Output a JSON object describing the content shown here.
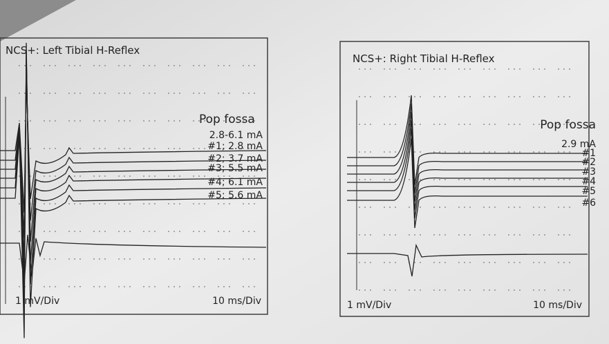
{
  "panels": [
    {
      "title": "NCS+: Left Tibial H-Reflex",
      "site": "Pop fossa",
      "intensity": "2.8-6.1 mA",
      "traces": [
        "#1; 2.8 mA",
        "#2; 3.7 mA",
        "#3; 5.5 mA",
        "#4; 6.1 mA",
        "#5; 5.6 mA"
      ],
      "amplitude_scale": "1 mV/Div",
      "time_scale": "10 ms/Div"
    },
    {
      "title": "NCS+: Right Tibial H-Reflex",
      "site": "Pop fossa",
      "intensity": "2.9 mA",
      "traces": [
        "#1",
        "#2",
        "#3",
        "#4",
        "#5",
        "#6"
      ],
      "amplitude_scale": "1 mV/Div",
      "time_scale": "10 ms/Div"
    }
  ]
}
